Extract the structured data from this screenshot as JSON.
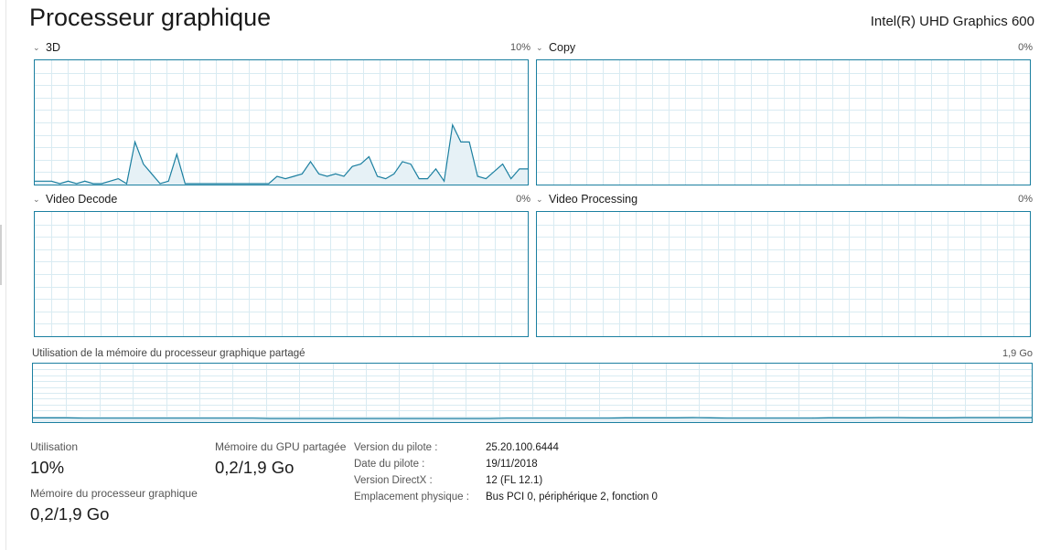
{
  "title": "Processeur graphique",
  "device": "Intel(R) UHD Graphics 600",
  "accent_color": "#1b7fa0",
  "grid_color": "#d9ebf2",
  "graphs": [
    {
      "label": "3D",
      "max": "10%",
      "icon": "chevron-down-icon",
      "values": [
        1,
        1,
        1,
        0,
        1,
        0,
        1,
        0,
        0,
        1,
        2,
        0,
        17,
        8,
        4,
        0,
        1,
        12,
        0,
        0,
        0,
        0,
        0,
        0,
        0,
        0,
        0,
        0,
        0,
        3,
        2,
        3,
        4,
        9,
        4,
        3,
        4,
        3,
        7,
        8,
        11,
        3,
        2,
        4,
        9,
        8,
        2,
        2,
        6,
        1,
        24,
        17,
        17,
        3,
        2,
        5,
        8,
        2,
        6,
        6
      ],
      "ymax": 50
    },
    {
      "label": "Copy",
      "max": "0%",
      "icon": "chevron-down-icon",
      "values": [],
      "ymax": 100
    },
    {
      "label": "Video Decode",
      "max": "0%",
      "icon": "chevron-down-icon",
      "values": [],
      "ymax": 100
    },
    {
      "label": "Video Processing",
      "max": "0%",
      "icon": "chevron-down-icon",
      "values": [],
      "ymax": 100
    }
  ],
  "memory_graph": {
    "label": "Utilisation de la mémoire du processeur graphique partagé",
    "max": "1,9 Go",
    "values": [
      0.11,
      0.11,
      0.11,
      0.1,
      0.1,
      0.1,
      0.1,
      0.1,
      0.1,
      0.1,
      0.1,
      0.1,
      0.1,
      0.1,
      0.09,
      0.09,
      0.09,
      0.09,
      0.09,
      0.09,
      0.09,
      0.09,
      0.09,
      0.09,
      0.09,
      0.09,
      0.09,
      0.09,
      0.1,
      0.1,
      0.1,
      0.1,
      0.1,
      0.1,
      0.1,
      0.11,
      0.11,
      0.11,
      0.11,
      0.12,
      0.11,
      0.1,
      0.1,
      0.1,
      0.1,
      0.1,
      0.1,
      0.11,
      0.11,
      0.11,
      0.12,
      0.12,
      0.11,
      0.11,
      0.11,
      0.12,
      0.12,
      0.12,
      0.12,
      0.12
    ]
  },
  "stats": {
    "utilisation_label": "Utilisation",
    "utilisation_value": "10%",
    "shared_label": "Mémoire du GPU partagée",
    "shared_value": "0,2/1,9 Go",
    "gpu_mem_label": "Mémoire du processeur graphique",
    "gpu_mem_value": "0,2/1,9 Go"
  },
  "info": [
    {
      "key": "Version du pilote :",
      "value": "25.20.100.6444"
    },
    {
      "key": "Date du pilote :",
      "value": "19/11/2018"
    },
    {
      "key": "Version DirectX :",
      "value": "12 (FL 12.1)"
    },
    {
      "key": "Emplacement physique :",
      "value": "Bus PCI 0, périphérique 2, fonction 0"
    }
  ]
}
